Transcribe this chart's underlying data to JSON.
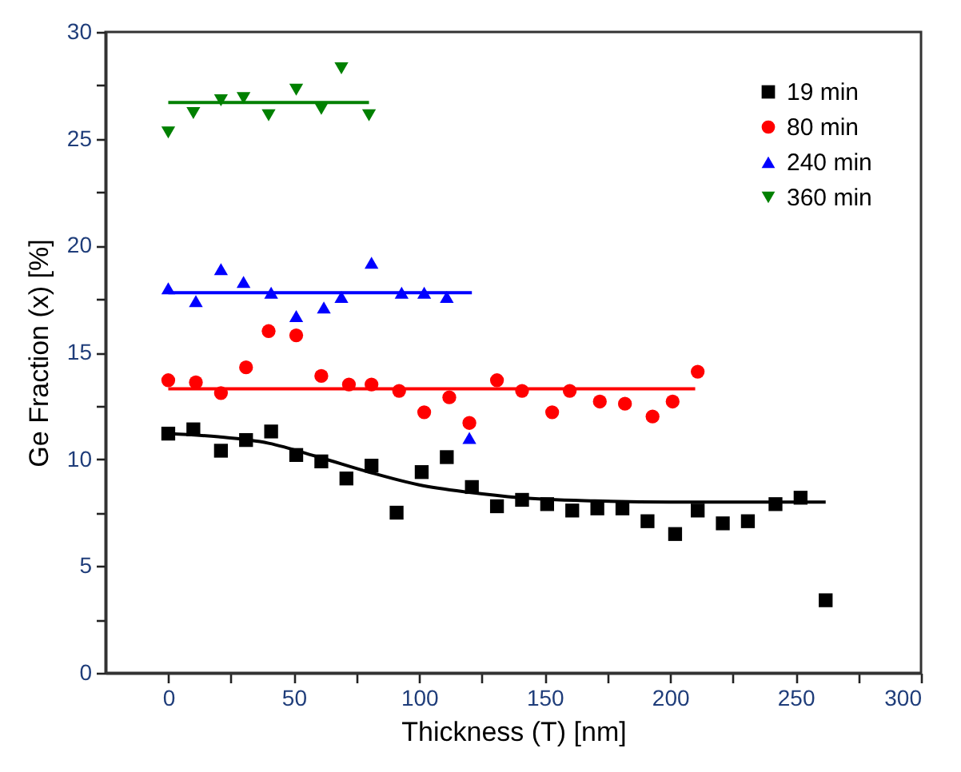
{
  "chart_data": {
    "type": "scatter",
    "xlabel": "Thickness (T) [nm]",
    "ylabel": "Ge Fraction (x) [%]",
    "xlim": [
      -25,
      300
    ],
    "ylim": [
      0,
      30
    ],
    "xticks": [
      0,
      {
        "value": 25,
        "label": null
      },
      50,
      {
        "value": 75,
        "label": null
      },
      100,
      {
        "value": 125,
        "label": null
      },
      150,
      {
        "value": 175,
        "label": null
      },
      200,
      {
        "value": 225,
        "label": null
      },
      250,
      {
        "value": 275,
        "label": null
      },
      300
    ],
    "yticks": [
      0,
      {
        "value": 2.5,
        "label": null
      },
      5,
      {
        "value": 7.5,
        "label": null
      },
      10,
      {
        "value": 12.5,
        "label": null
      },
      15,
      {
        "value": 17.5,
        "label": null
      },
      20,
      {
        "value": 22.5,
        "label": null
      },
      25,
      {
        "value": 27.5,
        "label": null
      },
      30
    ],
    "grid": false,
    "legend": "top right",
    "series": [
      {
        "name": "19 min",
        "type": "scatter",
        "marker": "square",
        "color": "#000000",
        "x": [
          0,
          10,
          21,
          31,
          41,
          51,
          61,
          71,
          81,
          91,
          101,
          111,
          121,
          131,
          141,
          151,
          161,
          171,
          181,
          191,
          202,
          211,
          221,
          231,
          242,
          252,
          262
        ],
        "values": [
          11.2,
          11.4,
          10.4,
          10.9,
          11.3,
          10.2,
          9.9,
          9.1,
          9.7,
          7.5,
          9.4,
          10.1,
          8.7,
          7.8,
          8.1,
          7.9,
          7.6,
          7.7,
          7.7,
          7.1,
          6.5,
          7.6,
          7.0,
          7.1,
          7.9,
          8.2,
          3.4
        ]
      },
      {
        "name": "80 min",
        "type": "scatter",
        "marker": "circle",
        "color": "#ff0000",
        "x": [
          0,
          11,
          21,
          31,
          40,
          51,
          61,
          72,
          81,
          92,
          102,
          112,
          120,
          131,
          141,
          153,
          160,
          172,
          182,
          193,
          201,
          211
        ],
        "values": [
          13.7,
          13.6,
          13.1,
          14.3,
          16.0,
          15.8,
          13.9,
          13.5,
          13.5,
          13.2,
          12.2,
          12.9,
          11.7,
          13.7,
          13.2,
          12.2,
          13.2,
          12.7,
          12.6,
          12.0,
          12.7,
          14.1
        ]
      },
      {
        "name": "240 min",
        "type": "scatter",
        "marker": "triangle",
        "color": "#0000ff",
        "x": [
          0,
          11,
          21,
          30,
          41,
          51,
          62,
          69,
          81,
          93,
          102,
          111,
          120
        ],
        "values": [
          18.0,
          17.4,
          18.9,
          18.3,
          17.8,
          16.7,
          17.1,
          17.6,
          19.2,
          17.8,
          17.8,
          17.6,
          11.0
        ]
      },
      {
        "name": "360 min",
        "type": "scatter",
        "marker": "triangle-down",
        "color": "#008000",
        "x": [
          0,
          10,
          21,
          30,
          40,
          51,
          61,
          69,
          80
        ],
        "values": [
          25.3,
          26.2,
          26.8,
          26.9,
          26.1,
          27.3,
          26.4,
          28.3,
          26.1
        ]
      },
      {
        "type": "line",
        "color": "#000000",
        "x": [
          0,
          20,
          40,
          60,
          80,
          100,
          120,
          140,
          170,
          200,
          262
        ],
        "values": [
          11.2,
          11.05,
          10.75,
          10.1,
          9.4,
          8.8,
          8.45,
          8.2,
          8.05,
          8.0,
          8.0
        ]
      },
      {
        "type": "line",
        "color": "#ff0000",
        "x": [
          0,
          210
        ],
        "values": [
          13.3,
          13.3
        ]
      },
      {
        "type": "line",
        "color": "#0000ff",
        "x": [
          0,
          121
        ],
        "values": [
          17.8,
          17.8
        ]
      },
      {
        "type": "line",
        "color": "#008000",
        "x": [
          0,
          80
        ],
        "values": [
          26.7,
          26.7
        ]
      }
    ]
  }
}
